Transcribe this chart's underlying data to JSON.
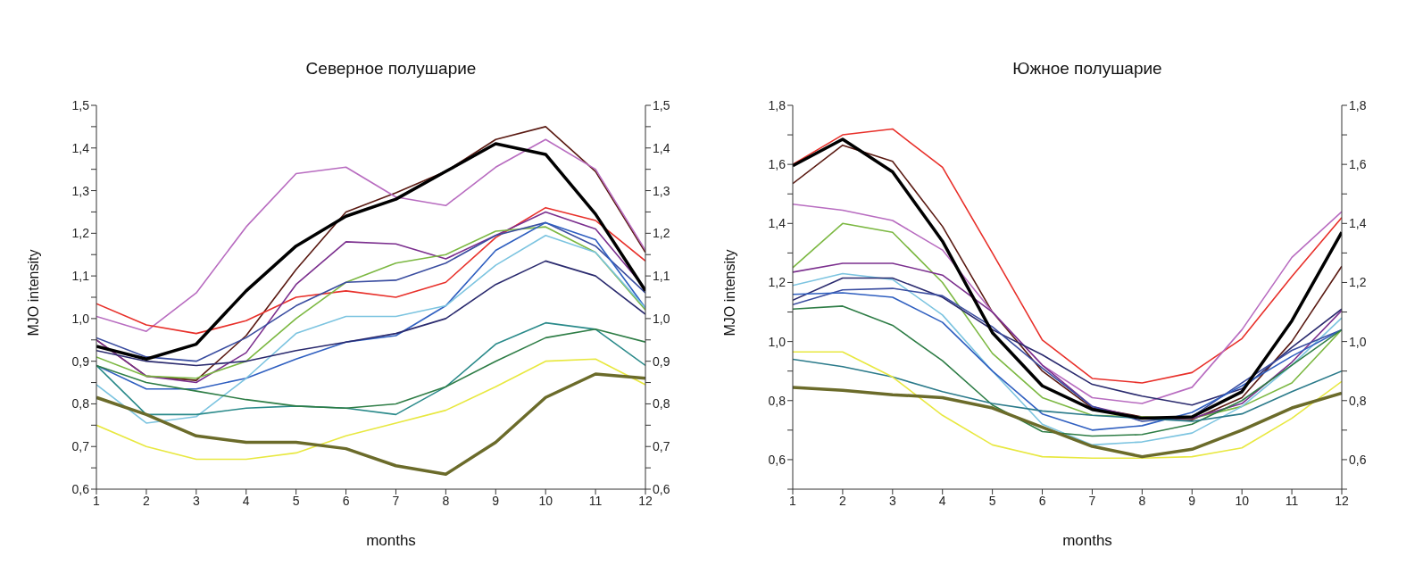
{
  "chart_data": [
    {
      "type": "line",
      "title": "Северное полушарие",
      "xlabel": "months",
      "ylabel": "MJO intensity",
      "x": [
        1,
        2,
        3,
        4,
        5,
        6,
        7,
        8,
        9,
        10,
        11,
        12
      ],
      "xlim": [
        1,
        12
      ],
      "xticks": [
        1,
        2,
        3,
        4,
        5,
        6,
        7,
        8,
        9,
        10,
        11,
        12
      ],
      "ylim": [
        0.6,
        1.5
      ],
      "yticks": [
        {
          "value": 0.6,
          "label": "0,6"
        },
        {
          "value": 0.65,
          "label": null
        },
        {
          "value": 0.7,
          "label": "0,7"
        },
        {
          "value": 0.75,
          "label": null
        },
        {
          "value": 0.8,
          "label": "0,8"
        },
        {
          "value": 0.85,
          "label": null
        },
        {
          "value": 0.9,
          "label": "0,9"
        },
        {
          "value": 0.95,
          "label": null
        },
        {
          "value": 1.0,
          "label": "1,0"
        },
        {
          "value": 1.05,
          "label": null
        },
        {
          "value": 1.1,
          "label": "1,1"
        },
        {
          "value": 1.15,
          "label": null
        },
        {
          "value": 1.2,
          "label": "1,2"
        },
        {
          "value": 1.25,
          "label": null
        },
        {
          "value": 1.3,
          "label": "1,3"
        },
        {
          "value": 1.35,
          "label": null
        },
        {
          "value": 1.4,
          "label": "1,4"
        },
        {
          "value": 1.45,
          "label": null
        },
        {
          "value": 1.5,
          "label": "1,5"
        }
      ],
      "y2lim": [
        0.6,
        1.5
      ],
      "y2ticks": [
        {
          "value": 0.6,
          "label": "0,6"
        },
        {
          "value": 0.65,
          "label": null
        },
        {
          "value": 0.7,
          "label": "0,7"
        },
        {
          "value": 0.75,
          "label": null
        },
        {
          "value": 0.8,
          "label": "0,8"
        },
        {
          "value": 0.85,
          "label": null
        },
        {
          "value": 0.9,
          "label": "0,9"
        },
        {
          "value": 0.95,
          "label": null
        },
        {
          "value": 1.0,
          "label": "1,0"
        },
        {
          "value": 1.05,
          "label": null
        },
        {
          "value": 1.1,
          "label": "1,1"
        },
        {
          "value": 1.15,
          "label": null
        },
        {
          "value": 1.2,
          "label": "1,2"
        },
        {
          "value": 1.25,
          "label": null
        },
        {
          "value": 1.3,
          "label": "1,3"
        },
        {
          "value": 1.35,
          "label": null
        },
        {
          "value": 1.4,
          "label": "1,4"
        },
        {
          "value": 1.45,
          "label": null
        },
        {
          "value": 1.5,
          "label": "1,5"
        }
      ],
      "marker": "none",
      "line_style": "solid",
      "series": [
        {
          "color": "#5a1a12",
          "values": [
            0.95,
            0.865,
            0.855,
            0.96,
            1.115,
            1.25,
            1.295,
            1.345,
            1.42,
            1.45,
            1.345,
            1.155
          ]
        },
        {
          "color": "#b86cc0",
          "values": [
            1.005,
            0.97,
            1.06,
            1.215,
            1.34,
            1.355,
            1.285,
            1.265,
            1.355,
            1.42,
            1.35,
            1.16
          ]
        },
        {
          "color": "#e8302a",
          "values": [
            1.035,
            0.985,
            0.965,
            0.995,
            1.05,
            1.065,
            1.05,
            1.085,
            1.19,
            1.26,
            1.23,
            1.135
          ]
        },
        {
          "color": "#7b2f8e",
          "values": [
            0.95,
            0.865,
            0.85,
            0.92,
            1.08,
            1.18,
            1.175,
            1.14,
            1.195,
            1.25,
            1.21,
            1.07
          ]
        },
        {
          "color": "#7cb842",
          "values": [
            0.91,
            0.865,
            0.86,
            0.9,
            1.0,
            1.085,
            1.13,
            1.15,
            1.205,
            1.215,
            1.155,
            1.02
          ]
        },
        {
          "color": "#3a4da0",
          "values": [
            0.955,
            0.91,
            0.9,
            0.955,
            1.03,
            1.085,
            1.09,
            1.13,
            1.195,
            1.225,
            1.17,
            1.06
          ]
        },
        {
          "color": "#2f5fc0",
          "values": [
            0.89,
            0.835,
            0.835,
            0.86,
            0.905,
            0.945,
            0.96,
            1.03,
            1.16,
            1.225,
            1.185,
            1.025
          ]
        },
        {
          "color": "#7cc4e0",
          "values": [
            0.845,
            0.755,
            0.77,
            0.86,
            0.965,
            1.005,
            1.005,
            1.03,
            1.125,
            1.195,
            1.155,
            1.025
          ]
        },
        {
          "color": "#2a2a6e",
          "values": [
            0.925,
            0.9,
            0.89,
            0.9,
            0.925,
            0.945,
            0.965,
            1.0,
            1.08,
            1.135,
            1.1,
            1.01
          ]
        },
        {
          "color": "#2a8a8a",
          "values": [
            0.89,
            0.775,
            0.775,
            0.79,
            0.795,
            0.79,
            0.775,
            0.84,
            0.94,
            0.99,
            0.975,
            0.89
          ]
        },
        {
          "color": "#2e7d46",
          "values": [
            0.89,
            0.85,
            0.83,
            0.81,
            0.795,
            0.79,
            0.8,
            0.84,
            0.9,
            0.955,
            0.975,
            0.945
          ]
        },
        {
          "color": "#e8e840",
          "values": [
            0.75,
            0.7,
            0.67,
            0.67,
            0.685,
            0.725,
            0.755,
            0.785,
            0.84,
            0.9,
            0.905,
            0.845
          ]
        },
        {
          "color": "#6b6b2a",
          "values": [
            0.815,
            0.775,
            0.725,
            0.71,
            0.71,
            0.695,
            0.655,
            0.635,
            0.71,
            0.815,
            0.87,
            0.86
          ]
        },
        {
          "color": "#000000",
          "values": [
            0.935,
            0.905,
            0.94,
            1.065,
            1.17,
            1.24,
            1.28,
            1.345,
            1.41,
            1.385,
            1.245,
            1.065
          ]
        }
      ]
    },
    {
      "type": "line",
      "title": "Южное полушарие",
      "xlabel": "months",
      "ylabel": "MJO intensity",
      "x": [
        1,
        2,
        3,
        4,
        5,
        6,
        7,
        8,
        9,
        10,
        11,
        12
      ],
      "xlim": [
        1,
        12
      ],
      "xticks": [
        1,
        2,
        3,
        4,
        5,
        6,
        7,
        8,
        9,
        10,
        11,
        12
      ],
      "ylim": [
        0.5,
        1.8
      ],
      "yticks": [
        {
          "value": 0.5,
          "label": null
        },
        {
          "value": 0.6,
          "label": "0,6"
        },
        {
          "value": 0.7,
          "label": null
        },
        {
          "value": 0.8,
          "label": "0,8"
        },
        {
          "value": 0.9,
          "label": null
        },
        {
          "value": 1.0,
          "label": "1,0"
        },
        {
          "value": 1.1,
          "label": null
        },
        {
          "value": 1.2,
          "label": "1,2"
        },
        {
          "value": 1.3,
          "label": null
        },
        {
          "value": 1.4,
          "label": "1,4"
        },
        {
          "value": 1.5,
          "label": null
        },
        {
          "value": 1.6,
          "label": "1,6"
        },
        {
          "value": 1.7,
          "label": null
        },
        {
          "value": 1.8,
          "label": "1,8"
        }
      ],
      "y2lim": [
        0.5,
        1.8
      ],
      "y2ticks": [
        {
          "value": 0.5,
          "label": null
        },
        {
          "value": 0.6,
          "label": "0,6"
        },
        {
          "value": 0.7,
          "label": null
        },
        {
          "value": 0.8,
          "label": "0,8"
        },
        {
          "value": 0.9,
          "label": null
        },
        {
          "value": 1.0,
          "label": "1,0"
        },
        {
          "value": 1.1,
          "label": null
        },
        {
          "value": 1.2,
          "label": "1,2"
        },
        {
          "value": 1.3,
          "label": null
        },
        {
          "value": 1.4,
          "label": "1,4"
        },
        {
          "value": 1.5,
          "label": null
        },
        {
          "value": 1.6,
          "label": "1,6"
        },
        {
          "value": 1.7,
          "label": null
        },
        {
          "value": 1.8,
          "label": "1,8"
        }
      ],
      "marker": "none",
      "line_style": "solid",
      "series": [
        {
          "color": "#e8302a",
          "values": [
            1.6,
            1.7,
            1.72,
            1.59,
            1.3,
            1.005,
            0.875,
            0.86,
            0.895,
            1.01,
            1.22,
            1.42
          ]
        },
        {
          "color": "#5a1a12",
          "values": [
            1.535,
            1.665,
            1.61,
            1.39,
            1.1,
            0.9,
            0.775,
            0.745,
            0.735,
            0.81,
            1.0,
            1.255
          ]
        },
        {
          "color": "#b86cc0",
          "values": [
            1.465,
            1.445,
            1.41,
            1.31,
            1.1,
            0.92,
            0.81,
            0.79,
            0.845,
            1.04,
            1.285,
            1.44
          ]
        },
        {
          "color": "#7cb842",
          "values": [
            1.25,
            1.4,
            1.37,
            1.2,
            0.96,
            0.81,
            0.75,
            0.745,
            0.74,
            0.78,
            0.86,
            1.04
          ]
        },
        {
          "color": "#7b2f8e",
          "values": [
            1.235,
            1.265,
            1.265,
            1.225,
            1.1,
            0.92,
            0.78,
            0.74,
            0.74,
            0.79,
            0.93,
            1.105
          ]
        },
        {
          "color": "#7cc4e0",
          "values": [
            1.19,
            1.23,
            1.21,
            1.09,
            0.9,
            0.72,
            0.65,
            0.66,
            0.69,
            0.78,
            0.92,
            1.08
          ]
        },
        {
          "color": "#2a2a6e",
          "values": [
            1.14,
            1.215,
            1.215,
            1.15,
            1.04,
            0.955,
            0.855,
            0.815,
            0.785,
            0.84,
            0.98,
            1.11
          ]
        },
        {
          "color": "#3a4da0",
          "values": [
            1.125,
            1.175,
            1.18,
            1.155,
            1.05,
            0.91,
            0.78,
            0.73,
            0.745,
            0.86,
            0.97,
            1.04
          ]
        },
        {
          "color": "#2f5fc0",
          "values": [
            1.16,
            1.165,
            1.15,
            1.065,
            0.9,
            0.755,
            0.7,
            0.715,
            0.76,
            0.85,
            0.95,
            1.04
          ]
        },
        {
          "color": "#2e7d46",
          "values": [
            1.11,
            1.12,
            1.055,
            0.935,
            0.785,
            0.695,
            0.68,
            0.685,
            0.72,
            0.8,
            0.92,
            1.04
          ]
        },
        {
          "color": "#2a7a8a",
          "values": [
            0.94,
            0.915,
            0.88,
            0.83,
            0.79,
            0.765,
            0.75,
            0.74,
            0.73,
            0.755,
            0.83,
            0.9
          ]
        },
        {
          "color": "#e8e840",
          "values": [
            0.965,
            0.965,
            0.88,
            0.75,
            0.65,
            0.61,
            0.605,
            0.605,
            0.61,
            0.64,
            0.74,
            0.865
          ]
        },
        {
          "color": "#6b6b2a",
          "values": [
            0.845,
            0.835,
            0.82,
            0.81,
            0.775,
            0.71,
            0.645,
            0.61,
            0.635,
            0.7,
            0.775,
            0.825
          ]
        },
        {
          "color": "#000000",
          "values": [
            1.595,
            1.685,
            1.575,
            1.34,
            1.03,
            0.85,
            0.77,
            0.74,
            0.745,
            0.83,
            1.07,
            1.37
          ]
        }
      ]
    }
  ]
}
